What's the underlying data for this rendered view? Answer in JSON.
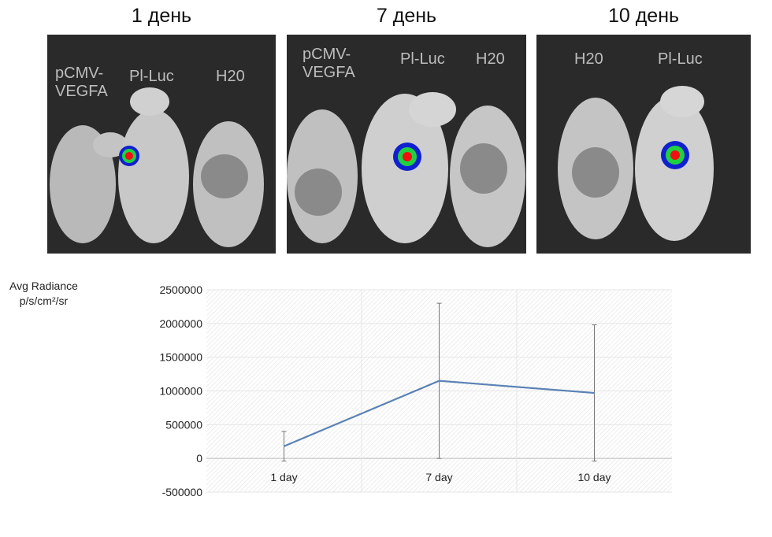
{
  "panels": [
    {
      "title": "1 день",
      "labels": [
        "pCMV-\nVEGFA",
        "Pl-Luc",
        "H20"
      ]
    },
    {
      "title": "7 день",
      "labels": [
        "pCMV-\nVEGFA",
        "Pl-Luc",
        "H20"
      ]
    },
    {
      "title": "10 день",
      "labels": [
        "H20",
        "Pl-Luc"
      ]
    }
  ],
  "chart_data": {
    "type": "line",
    "title": "",
    "ylabel": "Avg Radiance",
    "ylabel_unit": "p/s/cm²/sr",
    "xlabel": "",
    "categories": [
      "1 day",
      "7 day",
      "10 day"
    ],
    "series": [
      {
        "values": [
          180000,
          1150000,
          970000
        ],
        "error": [
          220000,
          1150000,
          1010000
        ],
        "color": "#5b82b5"
      }
    ],
    "ylim": [
      -500000,
      2500000
    ],
    "yticks": [
      2500000,
      2000000,
      1500000,
      1000000,
      500000,
      0,
      -500000
    ],
    "grid": true,
    "legend": "none"
  }
}
